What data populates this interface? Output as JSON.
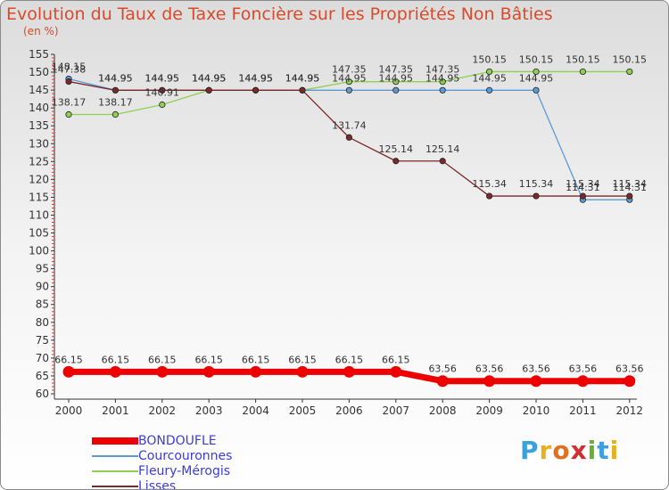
{
  "chart_data": {
    "type": "line",
    "title": "Evolution du Taux de Taxe Foncière sur les Propriétés Non Bâties",
    "ylabel": "(en %)",
    "xlabel": "",
    "ylim": [
      60,
      155
    ],
    "yticks": [
      60,
      65,
      70,
      75,
      80,
      85,
      90,
      95,
      100,
      105,
      110,
      115,
      120,
      125,
      130,
      135,
      140,
      145,
      150,
      155
    ],
    "categories": [
      "2000",
      "2001",
      "2002",
      "2003",
      "2004",
      "2005",
      "2006",
      "2007",
      "2008",
      "2009",
      "2010",
      "2011",
      "2012"
    ],
    "series": [
      {
        "name": "BONDOUFLE",
        "color": "#ee0000",
        "values": [
          66.15,
          66.15,
          66.15,
          66.15,
          66.15,
          66.15,
          66.15,
          66.15,
          63.56,
          63.56,
          63.56,
          63.56,
          63.56
        ],
        "labels": [
          "66.15",
          "66.15",
          "66.15",
          "66.15",
          "66.15",
          "66.15",
          "66.15",
          "66.15",
          "63.56",
          "63.56",
          "63.56",
          "63.56",
          "63.56"
        ]
      },
      {
        "name": "Courcouronnes",
        "color": "#5b9bd5",
        "values": [
          148.15,
          144.95,
          144.95,
          144.95,
          144.95,
          144.95,
          144.95,
          144.95,
          144.95,
          144.95,
          144.95,
          114.31,
          114.31
        ],
        "labels": [
          "148.15",
          "144.95",
          "144.95",
          "144.95",
          "144.95",
          "144.95",
          "144.95",
          "144.95",
          "144.95",
          "144.95",
          "144.95",
          "114.31",
          "114.31"
        ]
      },
      {
        "name": "Fleury-Mérogis",
        "color": "#8fd14f",
        "values": [
          138.17,
          138.17,
          140.91,
          144.95,
          144.95,
          144.95,
          147.35,
          147.35,
          147.35,
          150.15,
          150.15,
          150.15,
          150.15
        ],
        "labels": [
          "138.17",
          "138.17",
          "140.91",
          "144.95",
          "144.95",
          "144.95",
          "147.35",
          "147.35",
          "147.35",
          "150.15",
          "150.15",
          "150.15",
          "150.15"
        ]
      },
      {
        "name": "Lisses",
        "color": "#7a2a2a",
        "values": [
          147.38,
          144.95,
          144.95,
          144.95,
          144.95,
          144.95,
          131.74,
          125.14,
          125.14,
          115.34,
          115.34,
          115.34,
          115.34
        ],
        "labels": [
          "147.38",
          "144.95",
          "144.95",
          "144.95",
          "144.95",
          "144.95",
          "131.74",
          "125.14",
          "125.14",
          "115.34",
          "115.34",
          "115.34",
          "115.34"
        ]
      }
    ]
  },
  "legend": {
    "items": [
      "BONDOUFLE",
      "Courcouronnes",
      "Fleury-Mérogis",
      "Lisses"
    ]
  },
  "logo": {
    "letters": [
      "P",
      "r",
      "o",
      "x",
      "i",
      "t",
      "i"
    ],
    "colors": [
      "#3aa0e0",
      "#e8b020",
      "#e07020",
      "#d03030",
      "#6ab030",
      "#3aa0e0",
      "#e8b020"
    ]
  }
}
